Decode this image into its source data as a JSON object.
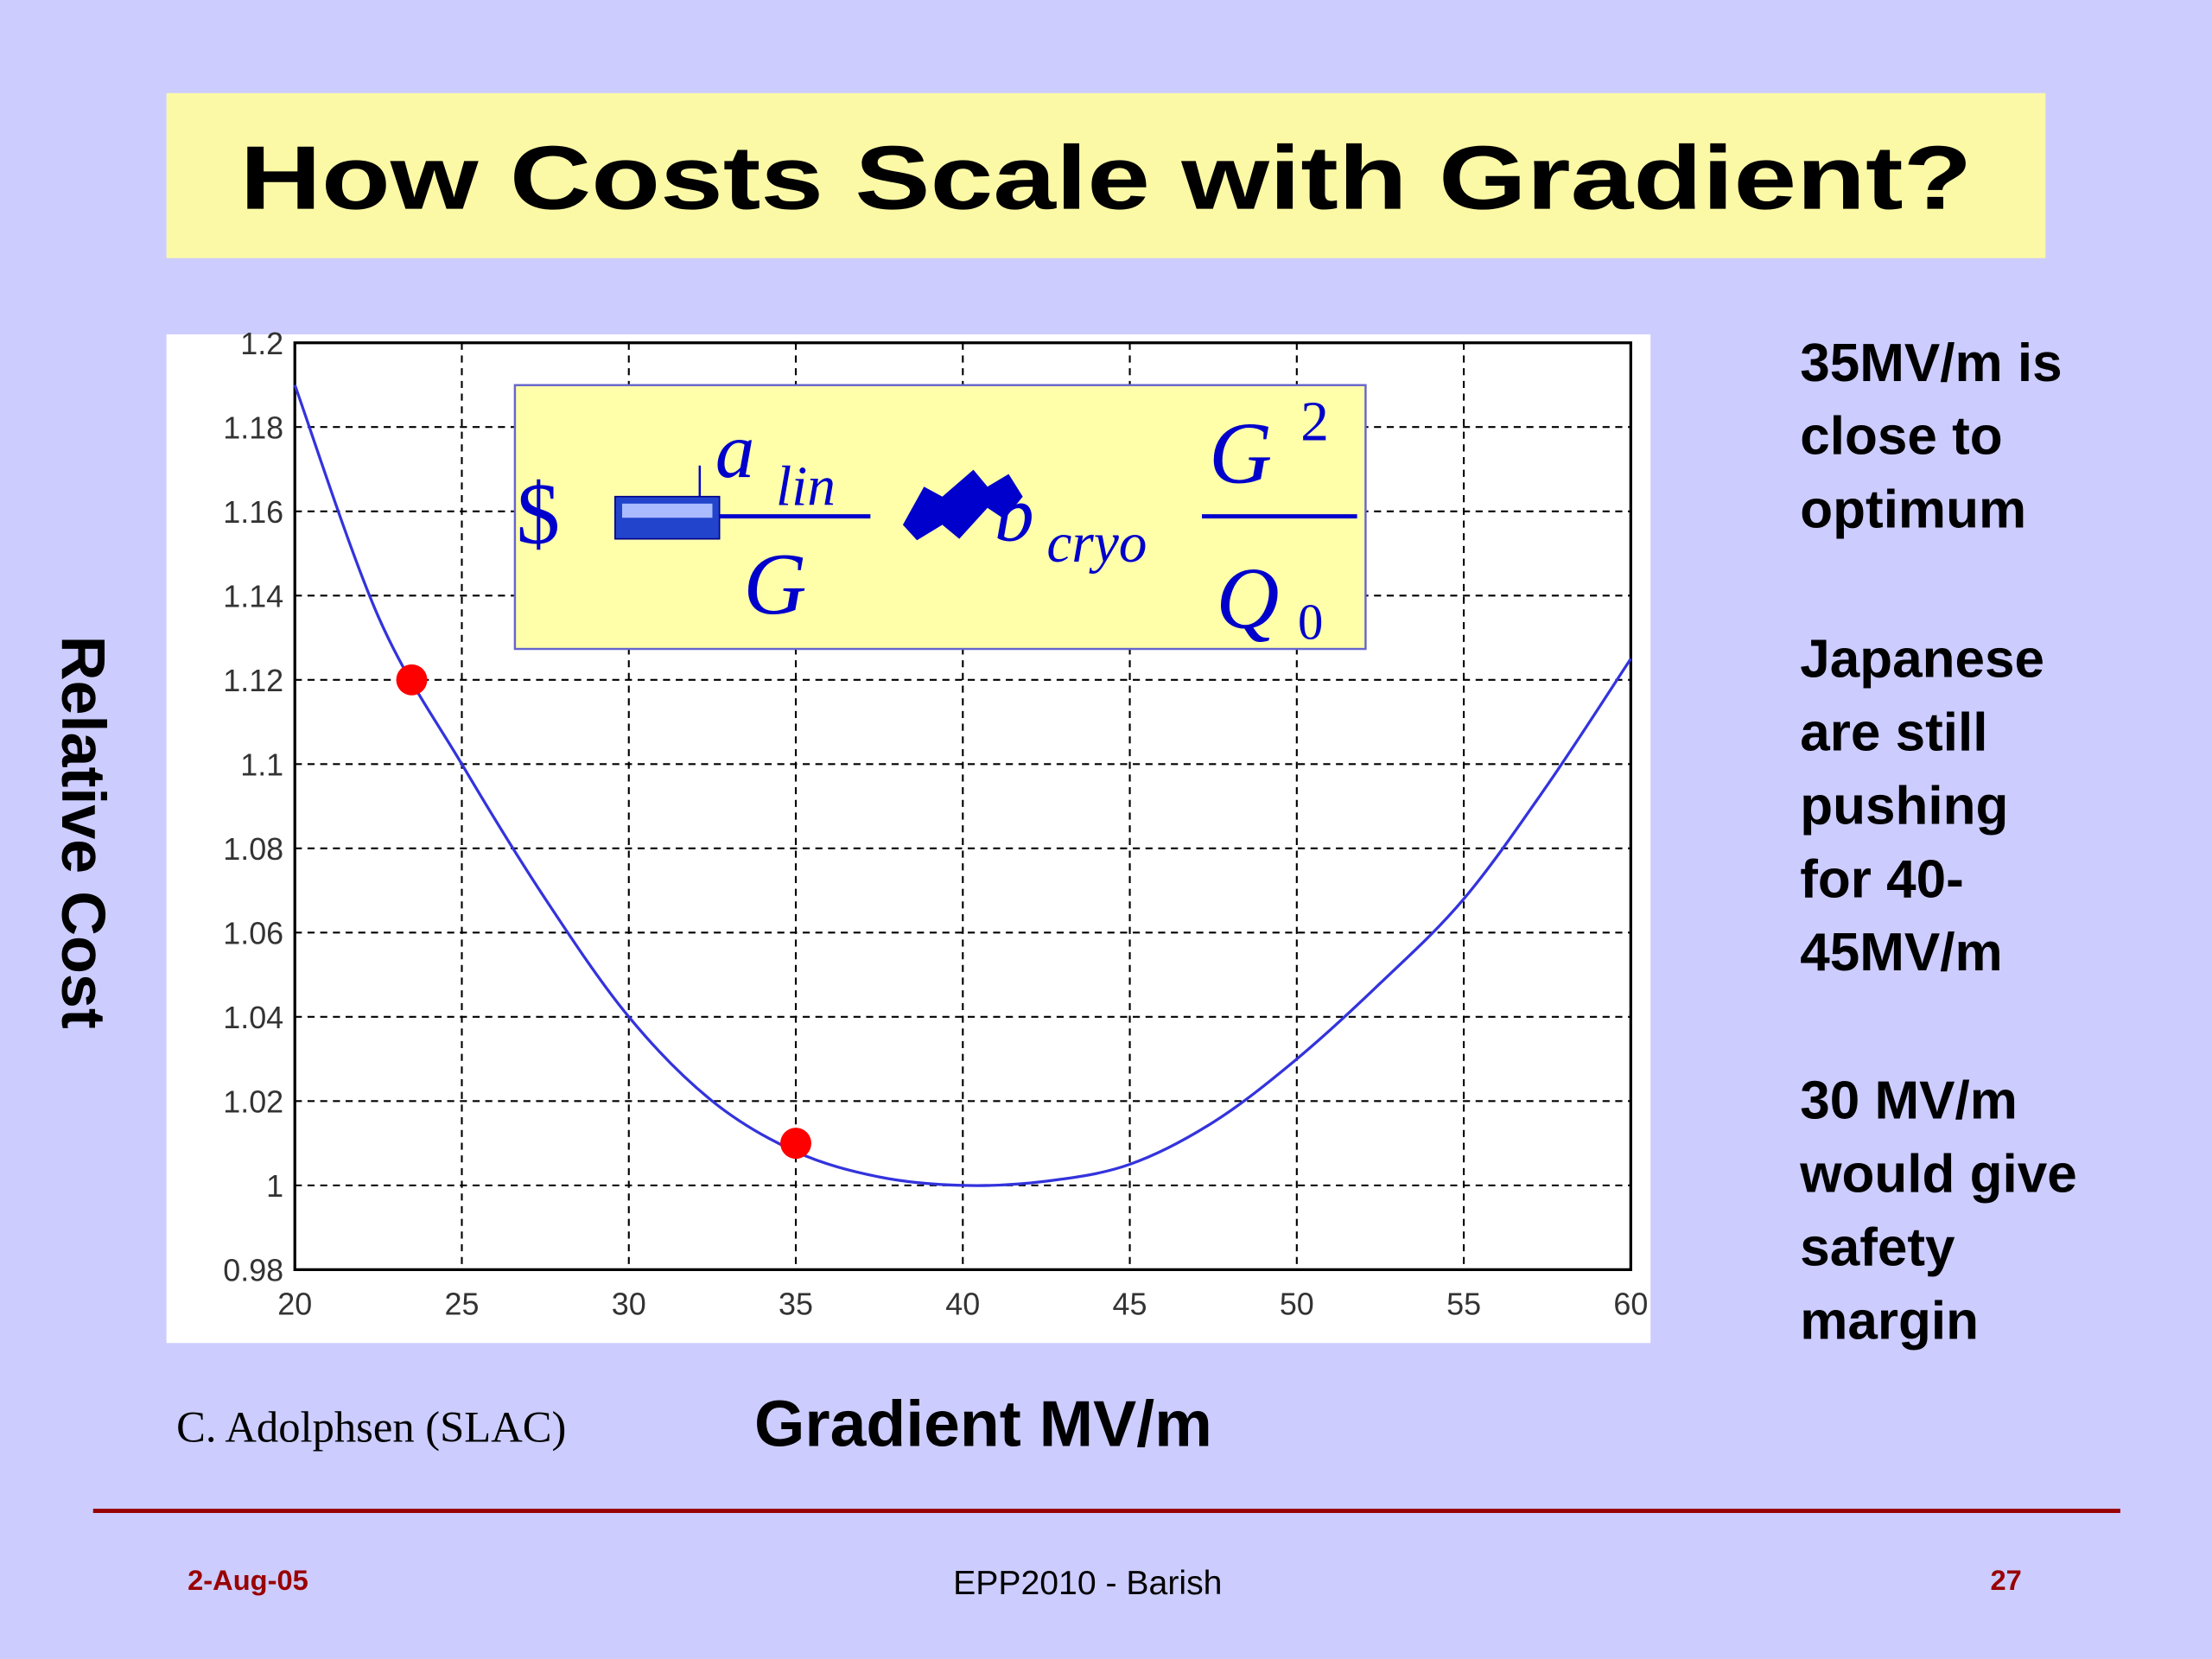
{
  "slide": {
    "title": "How Costs Scale with Gradient?",
    "notes": [
      [
        "35MV/m is",
        "close to",
        "optimum"
      ],
      [
        "Japanese",
        "are still",
        "pushing",
        "for 40-",
        "45MV/m"
      ],
      [
        "30 MV/m",
        "would give",
        "safety",
        "margin"
      ]
    ],
    "credit": "C. Adolphsen (SLAC)",
    "footer": {
      "date": "2-Aug-05",
      "center": "EPP2010  - Barish",
      "page": "27"
    },
    "formula": {
      "dollar": "$",
      "a": "a",
      "lin": "lin",
      "G1": "G",
      "b": "b",
      "cryo": "cryo",
      "G2": "G",
      "exp": "2",
      "Q": "Q",
      "sub": "0"
    }
  },
  "chart_data": {
    "type": "line",
    "x_label": "Gradient MV/m",
    "y_label": "Relative Cost",
    "x": [
      20,
      22.5,
      25,
      27.5,
      30,
      32.5,
      35,
      37.5,
      40,
      42.5,
      45,
      47.5,
      50,
      52.5,
      55,
      57.5,
      60
    ],
    "series": [
      {
        "color": "#3333dd",
        "values": [
          1.19,
          1.135,
          1.1,
          1.068,
          1.04,
          1.02,
          1.008,
          1.002,
          1.0,
          1.001,
          1.005,
          1.015,
          1.03,
          1.048,
          1.068,
          1.095,
          1.125
        ]
      }
    ],
    "markers": {
      "color": "#ff0000",
      "x": [
        23.5,
        35
      ],
      "values": [
        1.12,
        1.01
      ]
    },
    "xlim": [
      20,
      60
    ],
    "ylim": [
      0.98,
      1.2
    ],
    "xticks": [
      20,
      25,
      30,
      35,
      40,
      45,
      50,
      55,
      60
    ],
    "yticks": [
      0.98,
      1,
      1.02,
      1.04,
      1.06,
      1.08,
      1.1,
      1.12,
      1.14,
      1.16,
      1.18,
      1.2
    ],
    "grid": true
  }
}
